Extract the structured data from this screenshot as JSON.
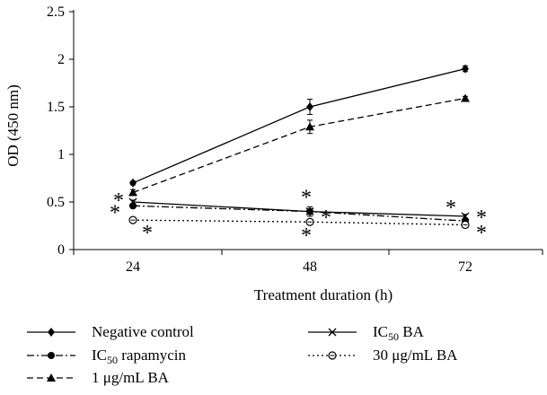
{
  "chart_data": {
    "type": "line",
    "xlabel": "Treatment duration (h)",
    "ylabel": "OD (450 nm)",
    "x": [
      24,
      48,
      72
    ],
    "x_tick_labels": [
      "24",
      "48",
      "72"
    ],
    "ylim": [
      0,
      2.5
    ],
    "y_ticks": [
      0,
      0.5,
      1,
      1.5,
      2,
      2.5
    ],
    "y_tick_labels": [
      "0",
      "0.5",
      "1",
      "1.5",
      "2",
      "2.5"
    ],
    "grid": false,
    "legend_position": "bottom",
    "series": [
      {
        "name": "Negative control",
        "values": [
          0.7,
          1.5,
          1.9
        ],
        "errors": [
          0.02,
          0.08,
          0.03
        ],
        "marker": "diamond",
        "line": "solid"
      },
      {
        "name": "IC50 rapamycin",
        "values": [
          0.46,
          0.4,
          0.3
        ],
        "errors": [
          0.02,
          0.05,
          0.03
        ],
        "marker": "circle",
        "line": "dashdot"
      },
      {
        "name": "1 μg/mL BA",
        "values": [
          0.6,
          1.29,
          1.59
        ],
        "errors": [
          0.03,
          0.07,
          0.02
        ],
        "marker": "triangle",
        "line": "dashed"
      },
      {
        "name": "IC50 BA",
        "values": [
          0.5,
          0.4,
          0.35
        ],
        "errors": [
          0.02,
          0.03,
          0.02
        ],
        "marker": "x",
        "line": "solid"
      },
      {
        "name": "30 μg/mL BA",
        "values": [
          0.31,
          0.29,
          0.26
        ],
        "errors": [
          0.02,
          0.02,
          0.02
        ],
        "marker": "open-circle",
        "line": "dotted"
      }
    ],
    "annotations": [
      {
        "text": "*",
        "x": 24,
        "y": 0.54
      },
      {
        "text": "*",
        "x": 24,
        "y": 0.41
      },
      {
        "text": "*",
        "x": 24,
        "y": 0.2
      },
      {
        "text": "*",
        "x": 48,
        "y": 0.57
      },
      {
        "text": "*",
        "x": 48,
        "y": 0.36
      },
      {
        "text": "*",
        "x": 48,
        "y": 0.17
      },
      {
        "text": "*",
        "x": 72,
        "y": 0.46
      },
      {
        "text": "*",
        "x": 72,
        "y": 0.36
      },
      {
        "text": "*",
        "x": 72,
        "y": 0.2
      }
    ]
  },
  "legend": {
    "items": [
      {
        "label": "Negative control"
      },
      {
        "label": "IC",
        "sub": "50",
        "rest": " rapamycin"
      },
      {
        "label": "1 μg/mL BA"
      },
      {
        "label": "IC",
        "sub": "50",
        "rest": " BA"
      },
      {
        "label": "30 μg/mL BA"
      }
    ]
  }
}
